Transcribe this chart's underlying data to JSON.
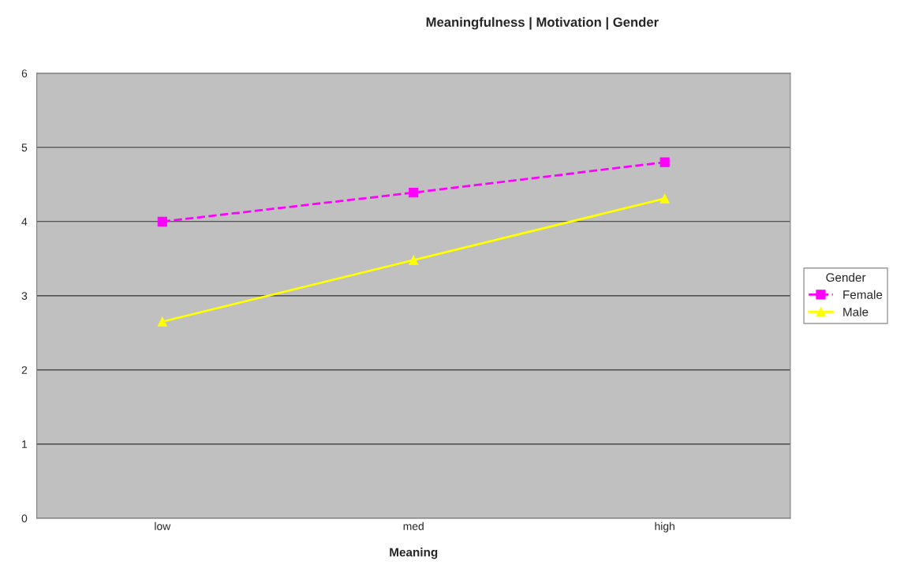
{
  "chart_data": {
    "type": "line",
    "title": "Meaningfulness | Motivation | Gender",
    "xlabel": "Meaning",
    "legend_title": "Gender",
    "categories": [
      "low",
      "med",
      "high"
    ],
    "series": [
      {
        "name": "Female",
        "color": "#ff00ff",
        "values": [
          4.0,
          4.39,
          4.8
        ],
        "marker": "square",
        "line_style": "dashed"
      },
      {
        "name": "Male",
        "color": "#ffff00",
        "values": [
          2.65,
          3.48,
          4.31
        ],
        "marker": "triangle",
        "line_style": "solid"
      }
    ],
    "ylim": [
      0,
      6
    ],
    "yticks": [
      0,
      1,
      2,
      3,
      4,
      5,
      6
    ],
    "grid": "y",
    "legend": "right"
  }
}
